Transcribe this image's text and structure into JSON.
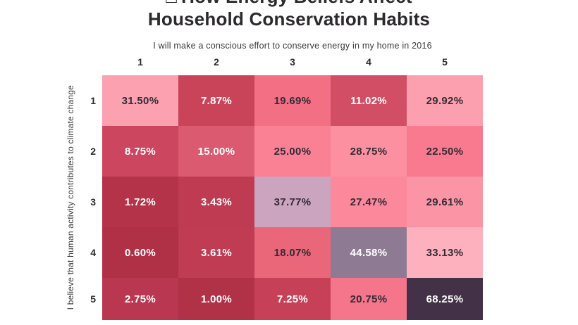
{
  "title": {
    "icon": "□",
    "line1": "How Energy Beliefs Affect",
    "line2": "Household Conservation Habits"
  },
  "x_axis": {
    "label": "I will make a conscious effort to conserve energy in my home in 2016",
    "ticks": [
      "1",
      "2",
      "3",
      "4",
      "5"
    ]
  },
  "y_axis": {
    "label": "I believe that human activity contributes to climate change",
    "ticks": [
      "1",
      "2",
      "3",
      "4",
      "5"
    ]
  },
  "chart_data": {
    "type": "heatmap",
    "title": "How Energy Beliefs Affect Household Conservation Habits",
    "xlabel": "I will make a conscious effort to conserve energy in my home in 2016",
    "ylabel": "I believe that human activity contributes to climate change",
    "x": [
      "1",
      "2",
      "3",
      "4",
      "5"
    ],
    "y": [
      "1",
      "2",
      "3",
      "4",
      "5"
    ],
    "values": [
      [
        31.5,
        7.87,
        19.69,
        11.02,
        29.92
      ],
      [
        8.75,
        15.0,
        25.0,
        28.75,
        22.5
      ],
      [
        1.72,
        3.43,
        37.77,
        27.47,
        29.61
      ],
      [
        0.6,
        3.61,
        18.07,
        44.58,
        33.13
      ],
      [
        2.75,
        1.0,
        7.25,
        20.75,
        68.25
      ]
    ],
    "labels": [
      [
        "31.50%",
        "7.87%",
        "19.69%",
        "11.02%",
        "29.92%"
      ],
      [
        "8.75%",
        "15.00%",
        "25.00%",
        "28.75%",
        "22.50%"
      ],
      [
        "1.72%",
        "3.43%",
        "37.77%",
        "27.47%",
        "29.61%"
      ],
      [
        "0.60%",
        "3.61%",
        "18.07%",
        "44.58%",
        "33.13%"
      ],
      [
        "2.75%",
        "1.00%",
        "7.25%",
        "20.75%",
        "68.25%"
      ]
    ],
    "cell_colors": [
      [
        "#FBA1B0",
        "#C94459",
        "#F26F84",
        "#D24E64",
        "#FC9FAE"
      ],
      [
        "#CB465E",
        "#DC5A70",
        "#FA8094",
        "#FC8FA0",
        "#F97A8E"
      ],
      [
        "#B43349",
        "#BE3B52",
        "#CBA4BF",
        "#FB889B",
        "#FB94A5"
      ],
      [
        "#B03046",
        "#BF3C53",
        "#EA6679",
        "#8E7B93",
        "#FDB1BE"
      ],
      [
        "#B93750",
        "#B13147",
        "#C64157",
        "#F5758B",
        "#433247"
      ]
    ],
    "label_color_dark": "#332b36",
    "label_color_light": "#ffffff"
  }
}
